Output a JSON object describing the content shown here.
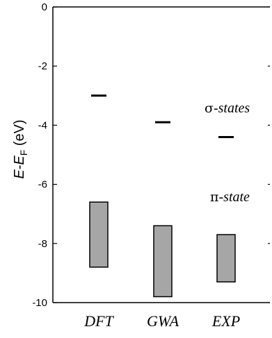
{
  "chart_data": {
    "type": "bar",
    "ylabel_parts": {
      "E": "E",
      "minus": "-",
      "EF_main": "E",
      "EF_sub": "F",
      "unit": " (eV)"
    },
    "ylim": [
      -10,
      0
    ],
    "yticks": [
      0,
      -2,
      -4,
      -6,
      -8,
      -10
    ],
    "ytick_labels": [
      "0",
      "-2",
      "-4",
      "-6",
      "-8",
      "-10"
    ],
    "categories": [
      "DFT",
      "GWA",
      "EXP"
    ],
    "pi_state_bands": [
      {
        "category": "DFT",
        "top": -6.6,
        "bottom": -8.8
      },
      {
        "category": "GWA",
        "top": -7.4,
        "bottom": -9.8
      },
      {
        "category": "EXP",
        "top": -7.7,
        "bottom": -9.3
      }
    ],
    "sigma_state_levels": [
      {
        "category": "DFT",
        "value": -3.0
      },
      {
        "category": "GWA",
        "value": -3.9
      },
      {
        "category": "EXP",
        "value": -4.4
      }
    ],
    "annotations": {
      "sigma": {
        "greek": "σ",
        "text": "-states"
      },
      "pi": {
        "greek": "π",
        "text": "-state"
      }
    },
    "colors": {
      "band_fill": "#a6a6a6",
      "band_stroke": "#000000",
      "axis": "#000000"
    }
  }
}
